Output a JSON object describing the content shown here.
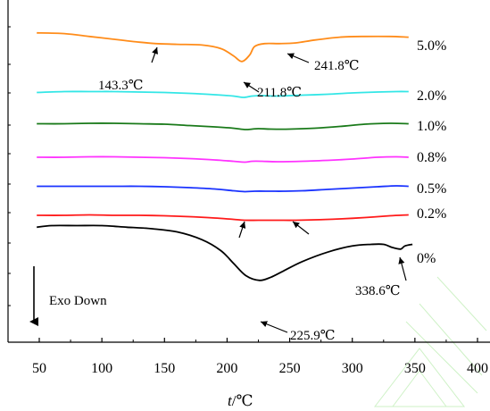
{
  "chart_data": {
    "type": "line",
    "title": "",
    "xlabel": "t/℃",
    "xlabel_italic": "t",
    "xlabel_unit": "/℃",
    "ylabel": "",
    "xlim": [
      40,
      400
    ],
    "x_ticks": [
      "50",
      "100",
      "150",
      "200",
      "250",
      "300",
      "350",
      "400"
    ],
    "x_tick_values": [
      50,
      100,
      150,
      200,
      250,
      300,
      350,
      400
    ],
    "grid": false,
    "legend": "series labels at right end of each curve",
    "direction_label": "Exo Down",
    "series": [
      {
        "name": "5.0%",
        "color": "#ff8c1a",
        "points": [
          [
            48,
            0.94
          ],
          [
            70,
            0.93
          ],
          [
            90,
            0.89
          ],
          [
            110,
            0.85
          ],
          [
            130,
            0.81
          ],
          [
            143.3,
            0.79
          ],
          [
            160,
            0.78
          ],
          [
            180,
            0.77
          ],
          [
            195,
            0.72
          ],
          [
            205,
            0.62
          ],
          [
            211.8,
            0.54
          ],
          [
            218,
            0.63
          ],
          [
            222,
            0.75
          ],
          [
            230,
            0.79
          ],
          [
            241.8,
            0.79
          ],
          [
            255,
            0.8
          ],
          [
            270,
            0.84
          ],
          [
            290,
            0.88
          ],
          [
            310,
            0.89
          ],
          [
            330,
            0.89
          ],
          [
            345,
            0.88
          ]
        ]
      },
      {
        "name": "2.0%",
        "color": "#33e6e6",
        "points": [
          [
            48,
            0.73
          ],
          [
            70,
            0.75
          ],
          [
            90,
            0.75
          ],
          [
            110,
            0.75
          ],
          [
            130,
            0.74
          ],
          [
            150,
            0.73
          ],
          [
            170,
            0.71
          ],
          [
            190,
            0.68
          ],
          [
            205,
            0.65
          ],
          [
            213,
            0.62
          ],
          [
            220,
            0.65
          ],
          [
            228,
            0.66
          ],
          [
            240,
            0.65
          ],
          [
            260,
            0.67
          ],
          [
            280,
            0.69
          ],
          [
            300,
            0.72
          ],
          [
            320,
            0.74
          ],
          [
            335,
            0.75
          ],
          [
            345,
            0.75
          ]
        ]
      },
      {
        "name": "1.0%",
        "color": "#1a7a1a",
        "points": [
          [
            48,
            0.63
          ],
          [
            70,
            0.63
          ],
          [
            90,
            0.64
          ],
          [
            110,
            0.64
          ],
          [
            130,
            0.63
          ],
          [
            150,
            0.62
          ],
          [
            170,
            0.59
          ],
          [
            190,
            0.56
          ],
          [
            205,
            0.53
          ],
          [
            214,
            0.5
          ],
          [
            220,
            0.51
          ],
          [
            225,
            0.52
          ],
          [
            235,
            0.51
          ],
          [
            250,
            0.51
          ],
          [
            270,
            0.53
          ],
          [
            290,
            0.57
          ],
          [
            310,
            0.62
          ],
          [
            330,
            0.64
          ],
          [
            345,
            0.63
          ]
        ]
      },
      {
        "name": "0.8%",
        "color": "#ff33ff",
        "points": [
          [
            48,
            0.52
          ],
          [
            70,
            0.52
          ],
          [
            90,
            0.53
          ],
          [
            110,
            0.53
          ],
          [
            130,
            0.52
          ],
          [
            150,
            0.51
          ],
          [
            170,
            0.49
          ],
          [
            190,
            0.46
          ],
          [
            205,
            0.43
          ],
          [
            214,
            0.41
          ],
          [
            220,
            0.43
          ],
          [
            228,
            0.43
          ],
          [
            240,
            0.42
          ],
          [
            260,
            0.43
          ],
          [
            280,
            0.45
          ],
          [
            300,
            0.48
          ],
          [
            320,
            0.52
          ],
          [
            335,
            0.53
          ],
          [
            345,
            0.52
          ]
        ]
      },
      {
        "name": "0.5%",
        "color": "#1a33ff",
        "points": [
          [
            48,
            0.43
          ],
          [
            70,
            0.43
          ],
          [
            90,
            0.43
          ],
          [
            110,
            0.43
          ],
          [
            130,
            0.43
          ],
          [
            150,
            0.42
          ],
          [
            170,
            0.4
          ],
          [
            190,
            0.37
          ],
          [
            205,
            0.33
          ],
          [
            214,
            0.31
          ],
          [
            222,
            0.32
          ],
          [
            235,
            0.32
          ],
          [
            245,
            0.32
          ],
          [
            260,
            0.33
          ],
          [
            280,
            0.36
          ],
          [
            300,
            0.39
          ],
          [
            320,
            0.42
          ],
          [
            335,
            0.44
          ],
          [
            345,
            0.43
          ]
        ]
      },
      {
        "name": "0.2%",
        "color": "#ff1a1a",
        "points": [
          [
            48,
            0.34
          ],
          [
            70,
            0.34
          ],
          [
            90,
            0.35
          ],
          [
            110,
            0.34
          ],
          [
            130,
            0.34
          ],
          [
            150,
            0.33
          ],
          [
            170,
            0.31
          ],
          [
            190,
            0.28
          ],
          [
            205,
            0.25
          ],
          [
            215,
            0.23
          ],
          [
            225,
            0.23
          ],
          [
            240,
            0.23
          ],
          [
            255,
            0.23
          ],
          [
            270,
            0.24
          ],
          [
            290,
            0.26
          ],
          [
            310,
            0.29
          ],
          [
            330,
            0.33
          ],
          [
            345,
            0.35
          ]
        ]
      },
      {
        "name": "0%",
        "color": "#000000",
        "points": [
          [
            48,
            0.25
          ],
          [
            60,
            0.26
          ],
          [
            80,
            0.26
          ],
          [
            100,
            0.26
          ],
          [
            120,
            0.25
          ],
          [
            140,
            0.24
          ],
          [
            160,
            0.22
          ],
          [
            180,
            0.17
          ],
          [
            195,
            0.1
          ],
          [
            205,
            0.02
          ],
          [
            215,
            -0.06
          ],
          [
            225.9,
            -0.09
          ],
          [
            235,
            -0.07
          ],
          [
            245,
            -0.03
          ],
          [
            260,
            0.03
          ],
          [
            280,
            0.09
          ],
          [
            300,
            0.13
          ],
          [
            315,
            0.14
          ],
          [
            325,
            0.14
          ],
          [
            332,
            0.12
          ],
          [
            338.6,
            0.11
          ],
          [
            342,
            0.13
          ],
          [
            348,
            0.14
          ]
        ]
      }
    ],
    "annotations": [
      {
        "label": "143.3℃",
        "series": "5.0%",
        "x": 143.3
      },
      {
        "label": "211.8℃",
        "series": "5.0%",
        "x": 211.8
      },
      {
        "label": "241.8℃",
        "series": "5.0%",
        "x": 241.8
      },
      {
        "label": "225.9℃",
        "series": "0%",
        "x": 225.9
      },
      {
        "label": "338.6℃",
        "series": "0%",
        "x": 338.6
      }
    ]
  }
}
